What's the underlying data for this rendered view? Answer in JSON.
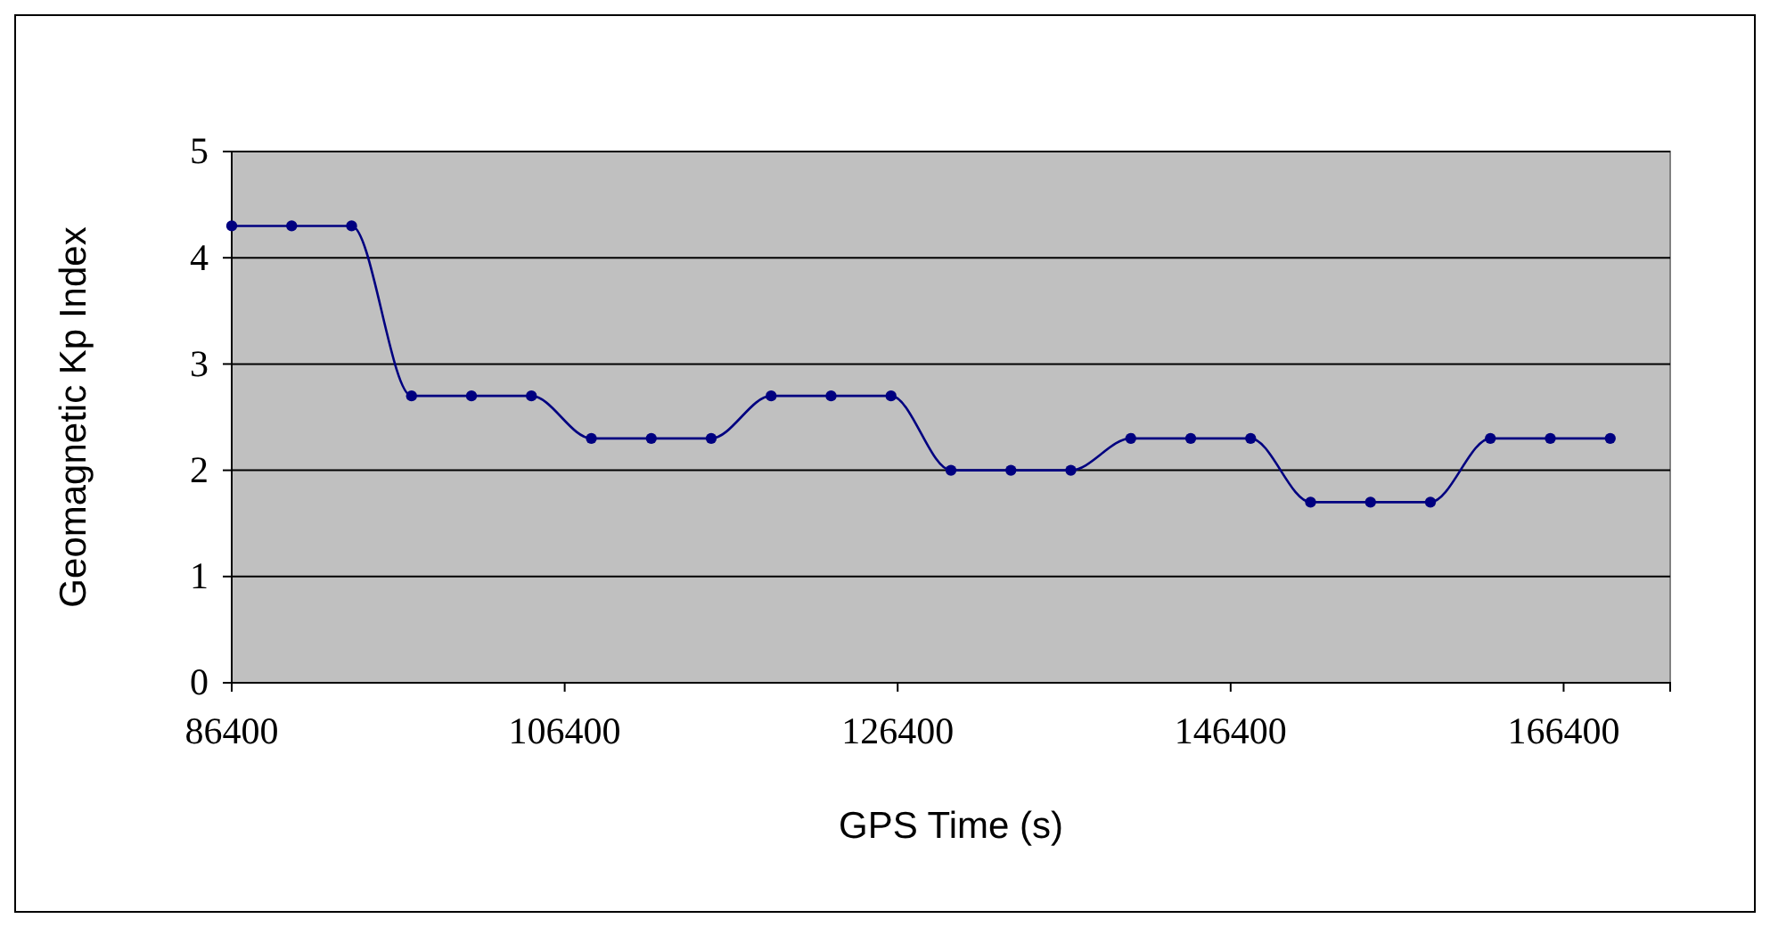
{
  "chart_data": {
    "type": "line",
    "xlabel": "GPS Time (s)",
    "ylabel": "Geomagnetic Kp Index",
    "x": [
      86400,
      90000,
      93600,
      97200,
      100800,
      104400,
      108000,
      111600,
      115200,
      118800,
      122400,
      126000,
      129600,
      133200,
      136800,
      140400,
      144000,
      147600,
      151200,
      154800,
      158400,
      162000,
      165600,
      169200
    ],
    "series": [
      {
        "color": "#000080",
        "values": [
          4.3,
          4.3,
          4.3,
          2.7,
          2.7,
          2.7,
          2.3,
          2.3,
          2.3,
          2.7,
          2.7,
          2.7,
          2.0,
          2.0,
          2.0,
          2.3,
          2.3,
          2.3,
          1.7,
          1.7,
          1.7,
          2.3,
          2.3,
          2.3
        ]
      }
    ],
    "xlim": [
      86400,
      172800
    ],
    "xticks": [
      86400,
      106400,
      126400,
      146400,
      166400
    ],
    "ylim": [
      0,
      5
    ],
    "yticks": [
      0,
      1,
      2,
      3,
      4,
      5
    ],
    "grid": "y",
    "marker": "circle",
    "line_style": "solid"
  }
}
